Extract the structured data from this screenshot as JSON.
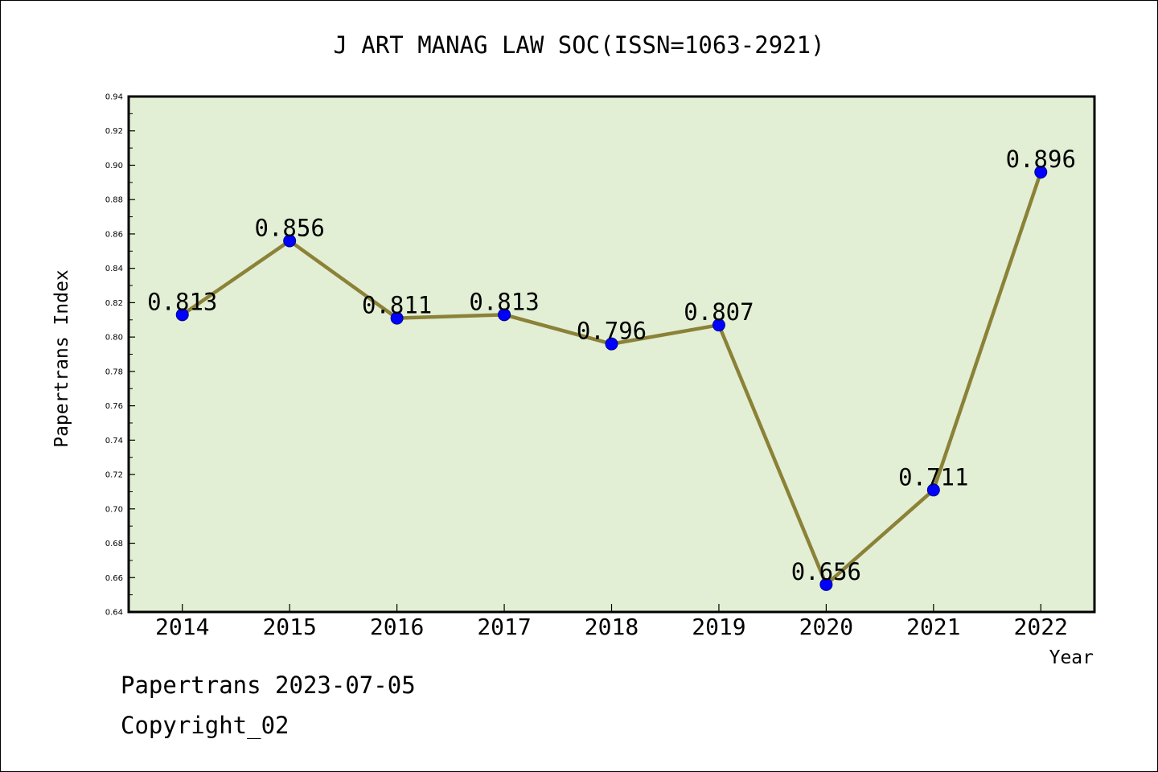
{
  "chart_data": {
    "type": "line",
    "title": "J ART MANAG LAW SOC(ISSN=1063-2921)",
    "xlabel": "Year",
    "ylabel": "Papertrans Index",
    "categories": [
      "2014",
      "2015",
      "2016",
      "2017",
      "2018",
      "2019",
      "2020",
      "2021",
      "2022"
    ],
    "values": [
      0.813,
      0.856,
      0.811,
      0.813,
      0.796,
      0.807,
      0.656,
      0.711,
      0.896
    ],
    "data_labels": [
      "0.813",
      "0.856",
      "0.811",
      "0.813",
      "0.796",
      "0.807",
      "0.656",
      "0.711",
      "0.896"
    ],
    "ylim": [
      0.64,
      0.94
    ],
    "yticks": [
      "0.64",
      "0.66",
      "0.68",
      "0.70",
      "0.72",
      "0.74",
      "0.76",
      "0.78",
      "0.80",
      "0.82",
      "0.84",
      "0.86",
      "0.88",
      "0.90",
      "0.92",
      "0.94"
    ],
    "grid": false,
    "legend": "none",
    "colors": {
      "plot_background": "#e2efd5",
      "line": "#8b8238",
      "marker": "#0000ff",
      "axes": "#000000"
    }
  },
  "footer": {
    "line1": "Papertrans 2023-07-05",
    "line2": "Copyright_02"
  }
}
